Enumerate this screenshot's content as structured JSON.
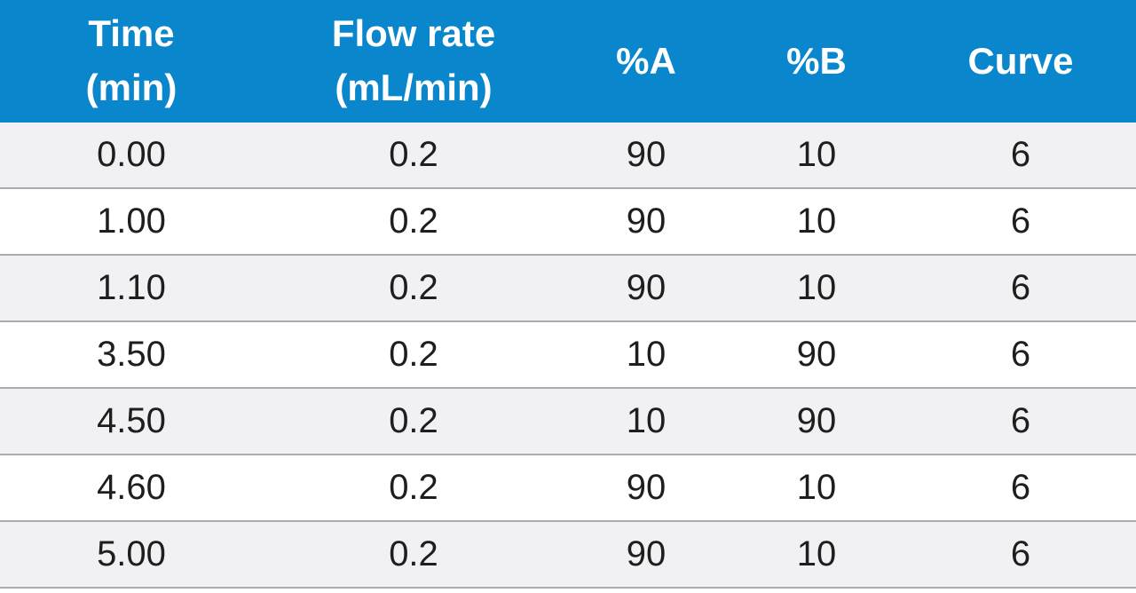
{
  "header": {
    "time_line1": "Time",
    "time_line2": "(min)",
    "flow_line1": "Flow rate",
    "flow_line2": "(mL/min)",
    "pct_a": "%A",
    "pct_b": "%B",
    "curve": "Curve"
  },
  "colors": {
    "header_bg": "#0a87cc",
    "row_alt_bg": "#f1f1f3",
    "divider": "#a9acb2"
  },
  "rows": [
    {
      "time": "0.00",
      "flow": "0.2",
      "a": "90",
      "b": "10",
      "curve": "6"
    },
    {
      "time": "1.00",
      "flow": "0.2",
      "a": "90",
      "b": "10",
      "curve": "6"
    },
    {
      "time": "1.10",
      "flow": "0.2",
      "a": "90",
      "b": "10",
      "curve": "6"
    },
    {
      "time": "3.50",
      "flow": "0.2",
      "a": "10",
      "b": "90",
      "curve": "6"
    },
    {
      "time": "4.50",
      "flow": "0.2",
      "a": "10",
      "b": "90",
      "curve": "6"
    },
    {
      "time": "4.60",
      "flow": "0.2",
      "a": "90",
      "b": "10",
      "curve": "6"
    },
    {
      "time": "5.00",
      "flow": "0.2",
      "a": "90",
      "b": "10",
      "curve": "6"
    }
  ]
}
